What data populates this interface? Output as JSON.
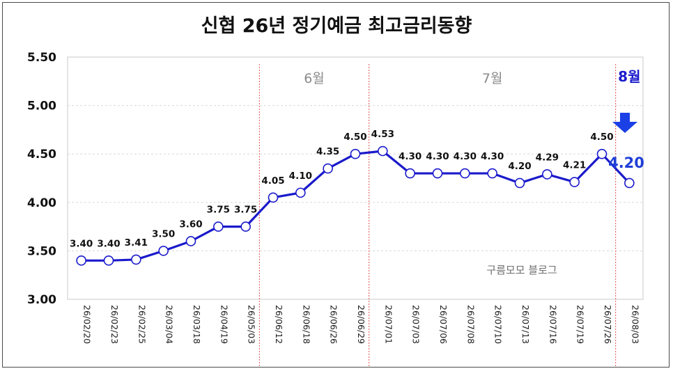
{
  "chart_data": {
    "type": "line",
    "title": "신협 26년 정기예금 최고금리동향",
    "xlabel": "",
    "ylabel": "",
    "ylim": [
      3.0,
      5.5
    ],
    "yticks": [
      "3.00",
      "3.50",
      "4.00",
      "4.50",
      "5.00",
      "5.50"
    ],
    "grid": true,
    "categories": [
      "26/02/20",
      "26/02/23",
      "26/02/25",
      "26/03/04",
      "26/03/18",
      "26/04/19",
      "26/05/03",
      "26/06/12",
      "26/06/18",
      "26/06/26",
      "26/06/29",
      "26/07/01",
      "26/07/03",
      "26/07/06",
      "26/07/08",
      "26/07/10",
      "26/07/13",
      "26/07/16",
      "26/07/19",
      "26/07/26",
      "26/08/03"
    ],
    "series": [
      {
        "values": [
          3.4,
          3.4,
          3.41,
          3.5,
          3.6,
          3.75,
          3.75,
          4.05,
          4.1,
          4.35,
          4.5,
          4.53,
          4.3,
          4.3,
          4.3,
          4.3,
          4.2,
          4.29,
          4.21,
          4.5,
          4.2
        ],
        "labels": [
          "3.40",
          "3.40",
          "3.41",
          "3.50",
          "3.60",
          "3.75",
          "3.75",
          "4.05",
          "4.10",
          "4.35",
          "4.50",
          "4.53",
          "4.30",
          "4.30",
          "4.30",
          "4.30",
          "4.20",
          "4.29",
          "4.21",
          "4.50",
          "4.20"
        ]
      }
    ],
    "months": [
      {
        "label": "6월",
        "start_index": 7,
        "end_index": 10,
        "highlight": false
      },
      {
        "label": "7월",
        "start_index": 11,
        "end_index": 19,
        "highlight": false
      },
      {
        "label": "8월",
        "start_index": 20,
        "end_index": 20,
        "highlight": true
      }
    ],
    "dividers_before_index": [
      7,
      11,
      20
    ],
    "highlight_label": "4.20",
    "watermark": "구름모모 블로그",
    "colors": {
      "line": "#1a1acc",
      "marker_fill": "#ffffff",
      "marker_stroke": "#1a1acc",
      "divider": "#e05050",
      "arrow": "#1a40e6",
      "highlight_text": "#1f3fd6"
    }
  }
}
